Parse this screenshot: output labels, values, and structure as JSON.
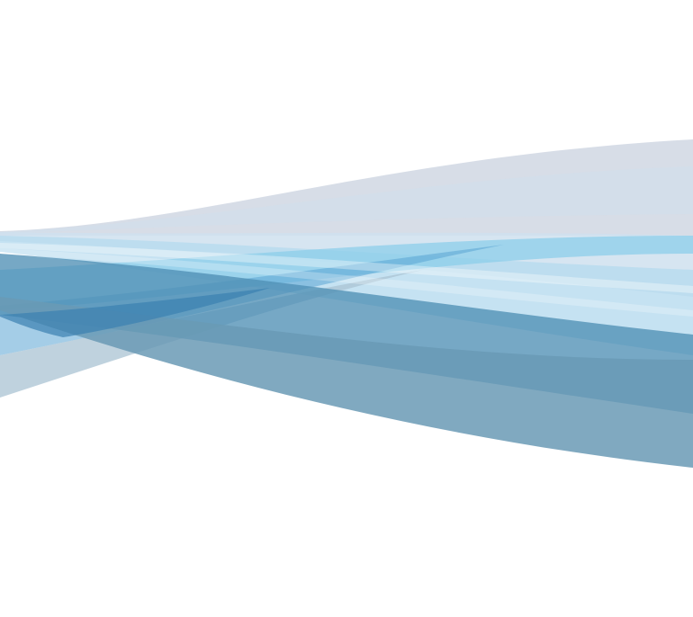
{
  "palette": {
    "background": "#ffffff",
    "lavender_gray": "#d3d9e4",
    "pale_blue": "#cfe0ee",
    "light_sky": "#b6dbef",
    "sky": "#8ccdea",
    "medium_blue": "#5aa4d3",
    "deep_blue": "#3b80b0",
    "steel_blue": "#4f8fb5",
    "slate_blue": "#6a9ab5",
    "mist_blue": "#a9c3d3"
  }
}
